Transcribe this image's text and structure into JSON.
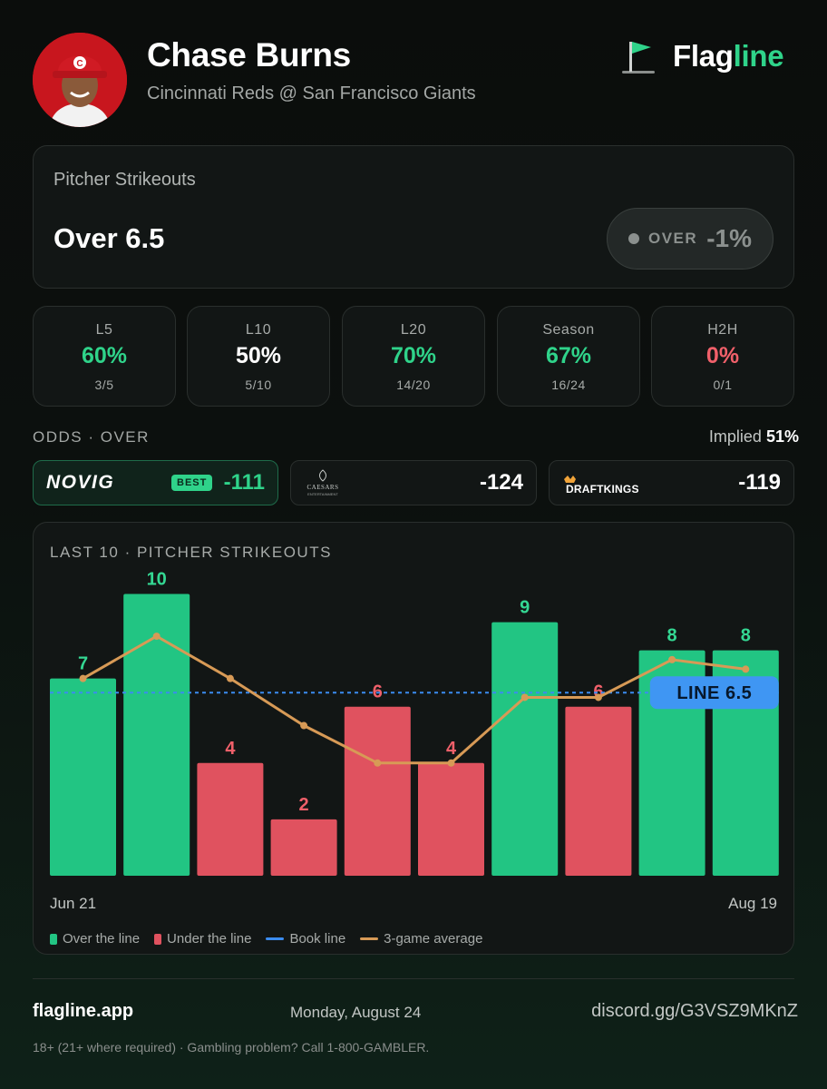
{
  "player": {
    "name": "Chase Burns",
    "matchup": "Cincinnati Reds @ San Francisco Giants",
    "cap_letter": "C"
  },
  "brand": {
    "name_prefix": "Flag",
    "name_accent": "line"
  },
  "market": {
    "label": "Pitcher Strikeouts",
    "line_text": "Over 6.5",
    "pick_label": "OVER",
    "pick_value": "-1%"
  },
  "stats": [
    {
      "label": "L5",
      "pct": "60%",
      "record": "3/5",
      "color": "#2fd38a"
    },
    {
      "label": "L10",
      "pct": "50%",
      "record": "5/10",
      "color": "#ffffff"
    },
    {
      "label": "L20",
      "pct": "70%",
      "record": "14/20",
      "color": "#2fd38a"
    },
    {
      "label": "Season",
      "pct": "67%",
      "record": "16/24",
      "color": "#2fd38a"
    },
    {
      "label": "H2H",
      "pct": "0%",
      "record": "0/1",
      "color": "#f0606a"
    }
  ],
  "odds": {
    "label": "ODDS · OVER",
    "implied_label": "Implied",
    "implied_value": "51%",
    "books": [
      {
        "name": "NOVIG",
        "price": "-111",
        "best": true,
        "badge": "BEST"
      },
      {
        "name": "CAESARS",
        "subname": "ENTERTAINMENT",
        "price": "-124",
        "best": false
      },
      {
        "name": "DRAFTKINGS",
        "price": "-119",
        "best": false
      }
    ]
  },
  "chart_data": {
    "type": "bar",
    "title": "LAST 10 · PITCHER STRIKEOUTS",
    "values": [
      7,
      10,
      4,
      2,
      6,
      4,
      9,
      6,
      8,
      8
    ],
    "line_label": "LINE 6.5",
    "line": 6.5,
    "avg_3game": [
      7,
      8.5,
      7,
      5.33,
      4,
      4,
      6.33,
      6.33,
      7.67,
      7.33
    ],
    "x_start": "Jun 21",
    "x_end": "Aug 19",
    "ylim": [
      0,
      10.5
    ],
    "colors": {
      "over": "#22c583",
      "under": "#e0525f",
      "book": "#3b8cf0",
      "avg": "#d79a56"
    },
    "legend": [
      "Over the line",
      "Under the line",
      "Book line",
      "3-game average"
    ]
  },
  "footer": {
    "site": "flagline.app",
    "date": "Monday, August 24",
    "discord": "discord.gg/G3VSZ9MKnZ",
    "disclaimer": "18+ (21+ where required) · Gambling problem? Call 1-800-GAMBLER."
  }
}
